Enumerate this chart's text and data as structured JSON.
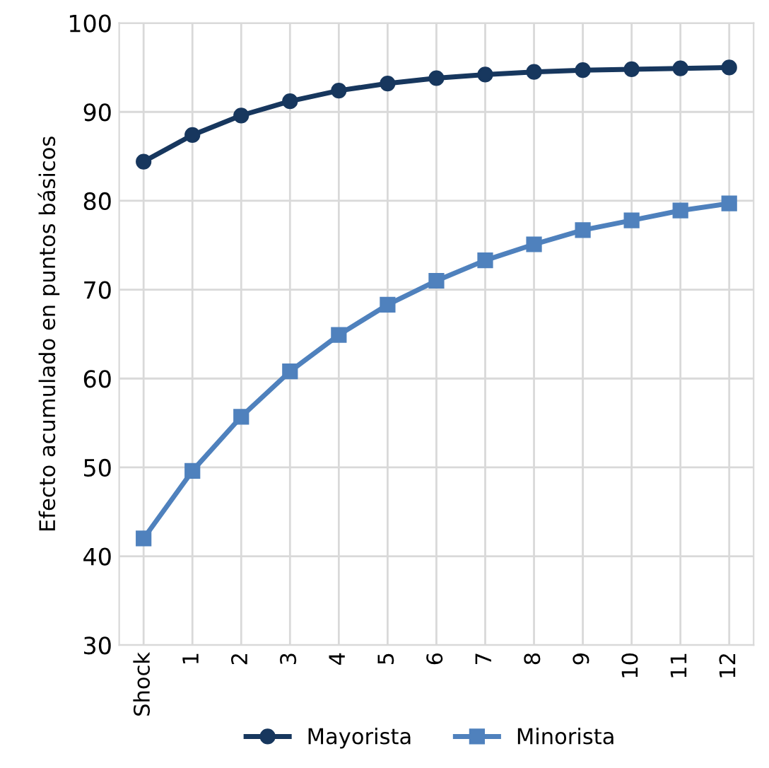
{
  "chart_data": {
    "type": "line",
    "ylabel": "Efecto acumulado en puntos básicos",
    "categories": [
      "Shock",
      "1",
      "2",
      "3",
      "4",
      "5",
      "6",
      "7",
      "8",
      "9",
      "10",
      "11",
      "12"
    ],
    "series": [
      {
        "name": "Mayorista",
        "color": "#17375e",
        "marker": "circle",
        "values": [
          84.4,
          87.4,
          89.6,
          91.2,
          92.4,
          93.2,
          93.8,
          94.2,
          94.5,
          94.7,
          94.8,
          94.9,
          95.0
        ]
      },
      {
        "name": "Minorista",
        "color": "#4f81bd",
        "marker": "square",
        "values": [
          42.0,
          49.6,
          55.7,
          60.8,
          64.9,
          68.3,
          71.0,
          73.3,
          75.1,
          76.7,
          77.8,
          78.9,
          79.7
        ]
      }
    ],
    "ylim": [
      30,
      100
    ],
    "yticks": [
      30,
      40,
      50,
      60,
      70,
      80,
      90,
      100
    ],
    "grid": true,
    "legend": "bottom",
    "line_style": "solid"
  }
}
